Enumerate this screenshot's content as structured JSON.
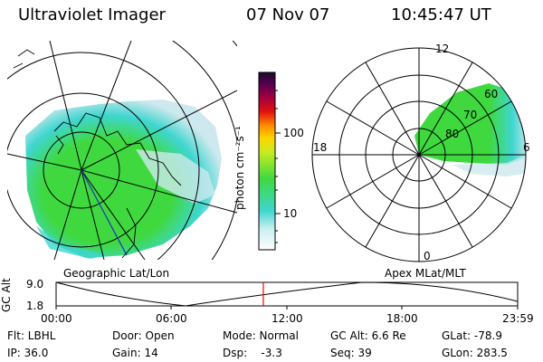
{
  "header": {
    "title": "Ultraviolet Imager",
    "date": "07 Nov 07",
    "time": "10:45:47 UT"
  },
  "maps": {
    "geographic_label": "Geographic Lat/Lon",
    "apex_label": "Apex MLat/MLT"
  },
  "colorbar": {
    "unit_label": "photon cm⁻²s⁻¹",
    "tick_100": "100",
    "tick_10": "10"
  },
  "polar": {
    "mlt_labels": [
      "12",
      "18",
      "6",
      "0"
    ],
    "mlat_labels": [
      "60",
      "70",
      "80"
    ]
  },
  "altitude_plot": {
    "ylabel": "GC Alt",
    "y_max": "9.0",
    "y_min": "1.8",
    "x_ticks": [
      "00:00",
      "06:00",
      "12:00",
      "18:00",
      "23:59"
    ],
    "current_time_fraction": 0.449
  },
  "info": {
    "flt": "Flt: LBHL",
    "ip": "IP: 36.0",
    "door": "Door: Open",
    "gain": "Gain: 14",
    "mode": "Mode: Normal",
    "dsp": "Dsp:    -3.3",
    "gc_alt": "GC Alt: 6.6 Re",
    "seq": "Seq: 39",
    "glat": "GLat: -78.9",
    "glon": "GLon: 283.5"
  },
  "colors": {
    "aurora_green": "#3fd93f",
    "aurora_cyan": "#3fd6d0",
    "aurora_pale": "#cde8ee",
    "marker_red": "#ff0000"
  }
}
